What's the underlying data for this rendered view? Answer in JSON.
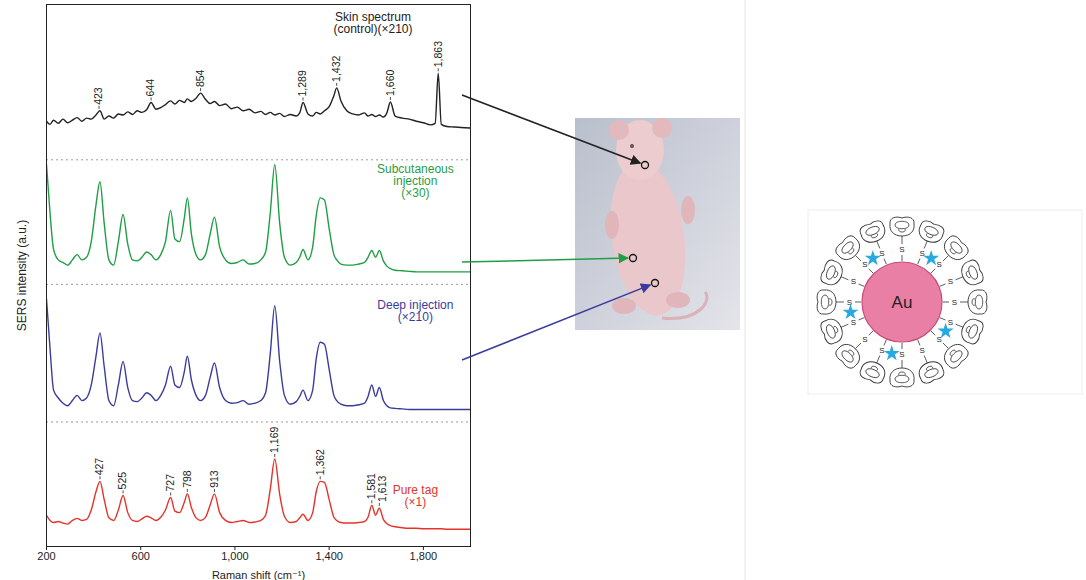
{
  "chart_data": {
    "type": "line",
    "x_label": "Raman shift (cm⁻¹)",
    "y_label": "SERS intensity (a.u.)",
    "tick_labels": "x",
    "xlim": [
      200,
      2000
    ],
    "xticks": [
      200,
      600,
      {
        "value": 1000,
        "label": "1,000"
      },
      {
        "value": 1400,
        "label": "1,400"
      },
      {
        "value": 1800,
        "label": "1,800"
      }
    ],
    "ylim": [
      0,
      104
    ],
    "x": [
      200,
      215,
      230,
      250,
      270,
      290,
      310,
      330,
      350,
      370,
      390,
      410,
      427,
      445,
      465,
      485,
      505,
      525,
      545,
      565,
      585,
      605,
      625,
      644,
      665,
      685,
      705,
      727,
      745,
      765,
      785,
      798,
      815,
      835,
      854,
      875,
      895,
      913,
      935,
      960,
      985,
      1010,
      1035,
      1060,
      1085,
      1110,
      1130,
      1150,
      1169,
      1190,
      1210,
      1235,
      1260,
      1275,
      1289,
      1310,
      1330,
      1345,
      1362,
      1380,
      1400,
      1420,
      1432,
      1450,
      1475,
      1500,
      1525,
      1550,
      1565,
      1581,
      1597,
      1613,
      1630,
      1645,
      1660,
      1680,
      1710,
      1740,
      1770,
      1800,
      1830,
      1850,
      1863,
      1876,
      1900,
      1930,
      1960,
      2000
    ],
    "series": [
      {
        "name": "Skin spectrum (control)(×210)",
        "color": "#222222",
        "baseline": 74.2,
        "values": [
          81.6,
          81.0,
          81.8,
          81.2,
          82.0,
          81.3,
          81.8,
          82.3,
          81.6,
          82.2,
          82.0,
          82.8,
          83.6,
          82.0,
          82.6,
          82.2,
          83.0,
          82.8,
          83.4,
          82.9,
          83.6,
          83.3,
          83.8,
          85.2,
          83.9,
          84.2,
          84.8,
          85.5,
          84.9,
          85.6,
          85.2,
          85.9,
          85.4,
          86.0,
          87.0,
          85.8,
          85.0,
          85.4,
          84.6,
          84.9,
          84.0,
          84.3,
          83.6,
          83.9,
          83.2,
          83.5,
          82.9,
          83.3,
          82.8,
          83.1,
          82.5,
          82.9,
          82.6,
          83.2,
          85.2,
          83.0,
          82.6,
          83.3,
          83.0,
          83.6,
          84.4,
          86.5,
          88.0,
          85.5,
          83.6,
          83.0,
          82.8,
          83.2,
          82.6,
          82.9,
          82.5,
          82.8,
          82.4,
          83.2,
          85.3,
          82.6,
          82.2,
          82.0,
          81.6,
          81.3,
          80.9,
          81.2,
          90.8,
          81.0,
          80.6,
          80.5,
          80.4,
          80.3
        ],
        "annotations": [
          423,
          644,
          854,
          {
            "value": 1289,
            "label": "1,289"
          },
          {
            "value": 1432,
            "label": "1,432"
          },
          {
            "value": 1660,
            "label": "1,660"
          },
          {
            "value": 1863,
            "label": "1,863"
          }
        ]
      },
      {
        "name": "Subcutaneous injection (×30)",
        "color": "#1f9e45",
        "baseline": 50.3,
        "values": [
          73.3,
          64.0,
          57.0,
          55.0,
          54.5,
          54.0,
          55.0,
          56.0,
          55.0,
          55.5,
          58.5,
          65.5,
          70.0,
          62.0,
          55.0,
          54.0,
          58.5,
          63.7,
          58.0,
          55.0,
          54.8,
          55.5,
          56.5,
          56.0,
          55.0,
          56.0,
          58.5,
          64.5,
          59.0,
          58.5,
          63.0,
          66.9,
          60.0,
          56.0,
          55.0,
          56.0,
          60.0,
          63.2,
          57.5,
          55.0,
          54.3,
          54.5,
          55.0,
          54.2,
          54.3,
          55.0,
          56.5,
          64.0,
          73.3,
          62.0,
          55.5,
          54.0,
          54.5,
          55.5,
          57.0,
          55.0,
          57.5,
          63.5,
          66.9,
          66.5,
          61.0,
          56.0,
          55.0,
          54.2,
          54.0,
          54.0,
          54.2,
          54.5,
          55.5,
          56.8,
          55.5,
          56.8,
          54.8,
          53.8,
          53.3,
          53.0,
          52.9,
          52.8,
          52.7,
          52.7,
          52.7,
          52.7,
          52.7,
          52.7,
          52.7,
          52.7,
          52.7,
          52.7
        ]
      },
      {
        "name": "Deep injection (×210)",
        "color": "#3a3c9c",
        "baseline": 23.9,
        "values": [
          47.5,
          38.0,
          30.0,
          28.5,
          27.5,
          27.0,
          28.0,
          29.0,
          28.0,
          28.5,
          31.0,
          36.5,
          41.0,
          34.5,
          28.0,
          27.0,
          31.0,
          35.5,
          30.5,
          28.0,
          27.8,
          28.5,
          29.5,
          29.0,
          28.0,
          29.0,
          31.0,
          34.6,
          31.0,
          30.5,
          33.5,
          36.5,
          32.0,
          29.0,
          28.0,
          29.0,
          32.5,
          35.2,
          30.5,
          28.0,
          27.5,
          27.6,
          28.0,
          27.3,
          27.5,
          28.0,
          29.5,
          37.0,
          46.2,
          35.5,
          29.0,
          27.3,
          27.8,
          28.8,
          30.0,
          28.0,
          30.0,
          36.0,
          39.2,
          38.8,
          34.0,
          29.0,
          28.0,
          27.3,
          27.0,
          27.0,
          27.2,
          27.5,
          28.8,
          31.0,
          28.8,
          30.5,
          28.0,
          27.0,
          26.6,
          26.5,
          26.4,
          26.3,
          26.3,
          26.3,
          26.3,
          26.3,
          26.3,
          26.3,
          26.3,
          26.3,
          26.3,
          26.3
        ]
      },
      {
        "name": "Pure tag (×1)",
        "color": "#e5332a",
        "values": [
          6.0,
          5.0,
          4.6,
          4.8,
          4.5,
          4.3,
          5.0,
          5.4,
          5.0,
          5.2,
          7.0,
          10.5,
          12.5,
          9.0,
          5.5,
          5.0,
          7.0,
          9.8,
          6.5,
          5.0,
          4.8,
          5.3,
          5.8,
          5.5,
          5.0,
          5.6,
          7.0,
          9.4,
          6.8,
          6.5,
          8.5,
          10.1,
          7.5,
          5.5,
          5.0,
          5.6,
          8.0,
          10.1,
          6.5,
          5.0,
          4.6,
          4.8,
          5.0,
          4.6,
          4.7,
          5.0,
          6.0,
          11.0,
          16.8,
          10.0,
          5.8,
          4.6,
          4.8,
          5.5,
          6.2,
          5.0,
          6.5,
          10.5,
          12.5,
          12.3,
          9.0,
          5.6,
          5.0,
          4.6,
          4.5,
          4.5,
          4.6,
          4.8,
          5.6,
          7.9,
          6.0,
          7.4,
          5.2,
          4.4,
          4.0,
          3.8,
          3.6,
          3.5,
          3.5,
          3.4,
          3.4,
          3.4,
          3.4,
          3.4,
          3.3,
          3.3,
          3.3,
          3.3
        ],
        "annotations": [
          427,
          525,
          727,
          798,
          913,
          {
            "value": 1169,
            "label": "1,169"
          },
          {
            "value": 1362,
            "label": "1,362"
          },
          {
            "value": 1581,
            "label": "1,581"
          },
          {
            "value": 1613,
            "label": "1,613"
          }
        ]
      }
    ]
  },
  "diagram": {
    "core_label": "Au",
    "linker_label": "S"
  }
}
